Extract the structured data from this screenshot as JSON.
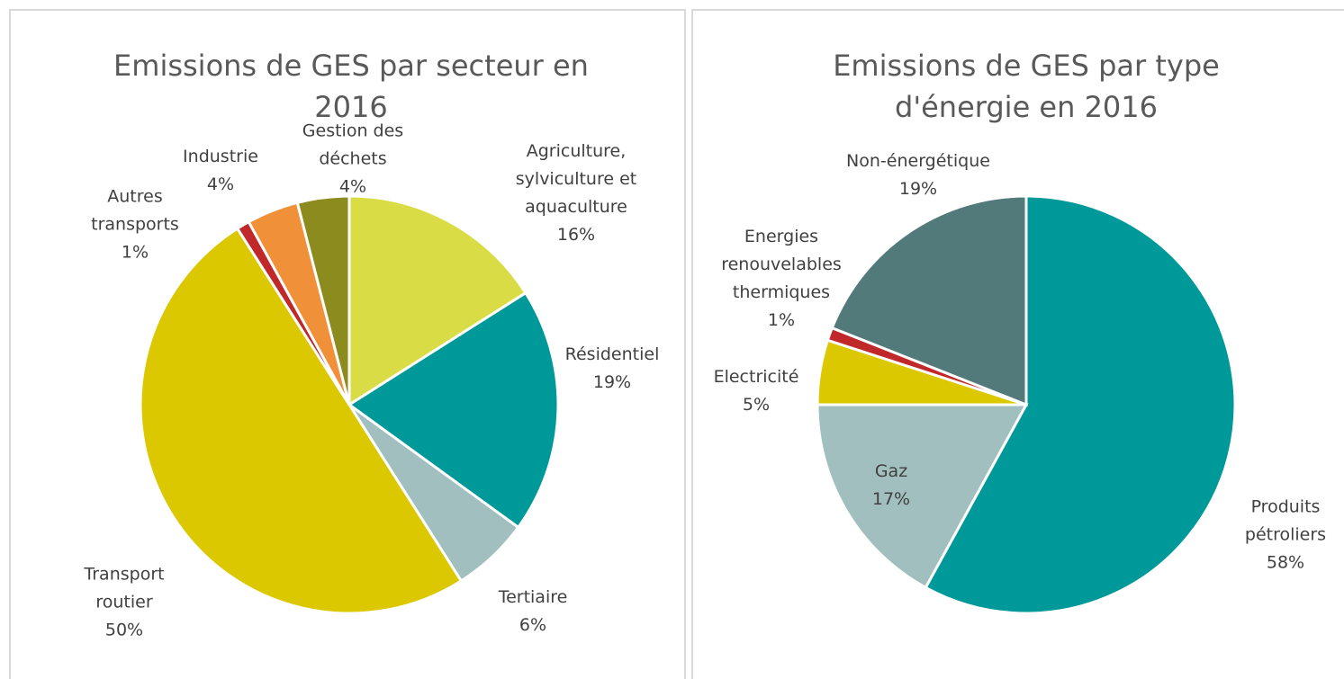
{
  "chart_data": [
    {
      "type": "pie",
      "title": "Emissions de GES par secteur en 2016",
      "categories": [
        "Agriculture, sylviculture et aquaculture",
        "Résidentiel",
        "Tertiaire",
        "Transport routier",
        "Autres transports",
        "Industrie",
        "Gestion des déchets"
      ],
      "values": [
        16,
        19,
        6,
        50,
        1,
        4,
        4
      ],
      "value_labels": [
        "16%",
        "19%",
        "6%",
        "50%",
        "1%",
        "4%",
        "4%"
      ],
      "colors": [
        "#d9dc44",
        "#009999",
        "#a2bfbf",
        "#dcc800",
        "#c0282a",
        "#f0913a",
        "#8c8c1e"
      ]
    },
    {
      "type": "pie",
      "title": "Emissions de GES par type d'énergie en 2016",
      "categories": [
        "Produits pétroliers",
        "Gaz",
        "Electricité",
        "Energies renouvelables thermiques",
        "Non-énergétique"
      ],
      "values": [
        58,
        17,
        5,
        1,
        19
      ],
      "value_labels": [
        "58%",
        "17%",
        "5%",
        "1%",
        "19%"
      ],
      "colors": [
        "#009999",
        "#a2bfbf",
        "#dcc800",
        "#c0282a",
        "#527a7a"
      ]
    }
  ]
}
